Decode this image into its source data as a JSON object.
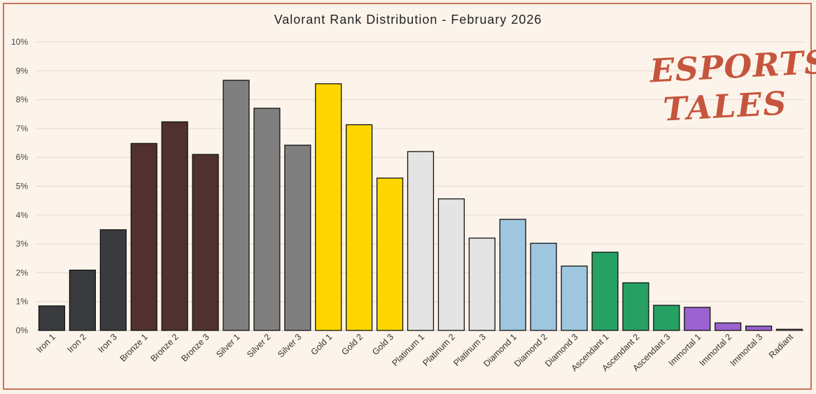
{
  "chart_data": {
    "type": "bar",
    "title": "Valorant Rank Distribution - February 2026",
    "xlabel": "",
    "ylabel": "",
    "ylim": [
      0,
      10
    ],
    "yticks": [
      "0%",
      "1%",
      "2%",
      "3%",
      "4%",
      "5%",
      "6%",
      "7%",
      "8%",
      "9%",
      "10%"
    ],
    "grid": true,
    "categories": [
      "Iron 1",
      "Iron 2",
      "Iron 3",
      "Bronze 1",
      "Bronze 2",
      "Bronze 3",
      "Silver 1",
      "Silver 2",
      "Silver 3",
      "Gold 1",
      "Gold 2",
      "Gold 3",
      "Platinum 1",
      "Platinum 2",
      "Platinum 3",
      "Diamond 1",
      "Diamond 2",
      "Diamond 3",
      "Ascendant 1",
      "Ascendant 2",
      "Ascendant 3",
      "Immortal 1",
      "Immortal 2",
      "Immortal 3",
      "Radiant"
    ],
    "values": [
      0.85,
      2.09,
      3.49,
      6.48,
      7.23,
      6.1,
      8.67,
      7.7,
      6.42,
      8.55,
      7.13,
      5.28,
      6.2,
      4.56,
      3.2,
      3.85,
      3.02,
      2.23,
      2.71,
      1.65,
      0.87,
      0.8,
      0.26,
      0.15,
      0.04
    ],
    "colors": [
      "#3a3b3e",
      "#3a3b3e",
      "#3a3b3e",
      "#513130",
      "#513130",
      "#513130",
      "#7f7f7f",
      "#7f7f7f",
      "#7f7f7f",
      "#ffd700",
      "#ffd700",
      "#ffd700",
      "#e4e4e4",
      "#e4e4e4",
      "#e4e4e4",
      "#9ec6de",
      "#9ec6de",
      "#9ec6de",
      "#27a163",
      "#27a163",
      "#27a163",
      "#9a63cf",
      "#9a63cf",
      "#9a63cf",
      "#f5f0da"
    ]
  },
  "logo": {
    "line1": "ESPORTS",
    "line2": "TALES"
  }
}
